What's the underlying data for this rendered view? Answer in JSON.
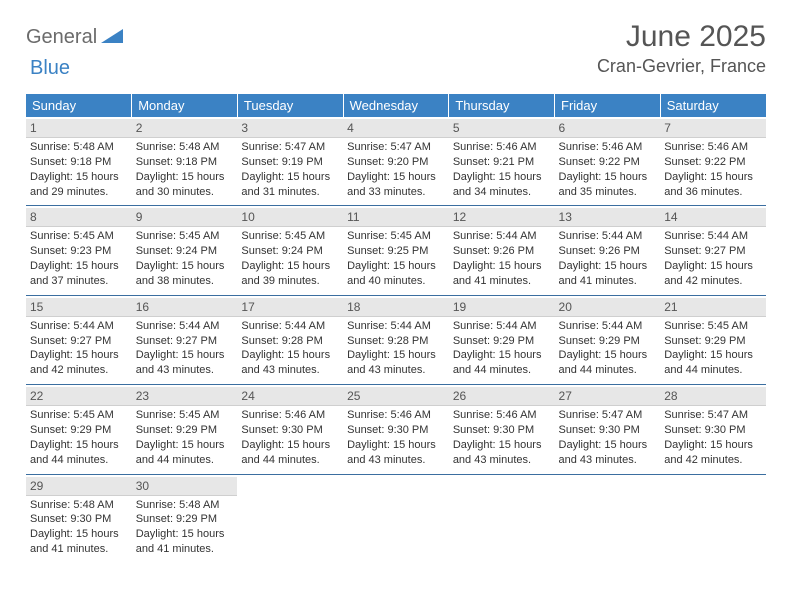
{
  "logo": {
    "part1": "General",
    "part2": "Blue"
  },
  "title": {
    "month": "June 2025",
    "location": "Cran-Gevrier, France"
  },
  "colors": {
    "header_bg": "#3b82c4",
    "header_text": "#ffffff",
    "daynum_bg": "#e7e7e7",
    "row_border": "#3b6ea0",
    "logo_gray": "#6b6b6b",
    "logo_blue": "#3b82c4"
  },
  "weekdays": [
    "Sunday",
    "Monday",
    "Tuesday",
    "Wednesday",
    "Thursday",
    "Friday",
    "Saturday"
  ],
  "weeks": [
    [
      {
        "n": "1",
        "sr": "5:48 AM",
        "ss": "9:18 PM",
        "dl": "15 hours and 29 minutes."
      },
      {
        "n": "2",
        "sr": "5:48 AM",
        "ss": "9:18 PM",
        "dl": "15 hours and 30 minutes."
      },
      {
        "n": "3",
        "sr": "5:47 AM",
        "ss": "9:19 PM",
        "dl": "15 hours and 31 minutes."
      },
      {
        "n": "4",
        "sr": "5:47 AM",
        "ss": "9:20 PM",
        "dl": "15 hours and 33 minutes."
      },
      {
        "n": "5",
        "sr": "5:46 AM",
        "ss": "9:21 PM",
        "dl": "15 hours and 34 minutes."
      },
      {
        "n": "6",
        "sr": "5:46 AM",
        "ss": "9:22 PM",
        "dl": "15 hours and 35 minutes."
      },
      {
        "n": "7",
        "sr": "5:46 AM",
        "ss": "9:22 PM",
        "dl": "15 hours and 36 minutes."
      }
    ],
    [
      {
        "n": "8",
        "sr": "5:45 AM",
        "ss": "9:23 PM",
        "dl": "15 hours and 37 minutes."
      },
      {
        "n": "9",
        "sr": "5:45 AM",
        "ss": "9:24 PM",
        "dl": "15 hours and 38 minutes."
      },
      {
        "n": "10",
        "sr": "5:45 AM",
        "ss": "9:24 PM",
        "dl": "15 hours and 39 minutes."
      },
      {
        "n": "11",
        "sr": "5:45 AM",
        "ss": "9:25 PM",
        "dl": "15 hours and 40 minutes."
      },
      {
        "n": "12",
        "sr": "5:44 AM",
        "ss": "9:26 PM",
        "dl": "15 hours and 41 minutes."
      },
      {
        "n": "13",
        "sr": "5:44 AM",
        "ss": "9:26 PM",
        "dl": "15 hours and 41 minutes."
      },
      {
        "n": "14",
        "sr": "5:44 AM",
        "ss": "9:27 PM",
        "dl": "15 hours and 42 minutes."
      }
    ],
    [
      {
        "n": "15",
        "sr": "5:44 AM",
        "ss": "9:27 PM",
        "dl": "15 hours and 42 minutes."
      },
      {
        "n": "16",
        "sr": "5:44 AM",
        "ss": "9:27 PM",
        "dl": "15 hours and 43 minutes."
      },
      {
        "n": "17",
        "sr": "5:44 AM",
        "ss": "9:28 PM",
        "dl": "15 hours and 43 minutes."
      },
      {
        "n": "18",
        "sr": "5:44 AM",
        "ss": "9:28 PM",
        "dl": "15 hours and 43 minutes."
      },
      {
        "n": "19",
        "sr": "5:44 AM",
        "ss": "9:29 PM",
        "dl": "15 hours and 44 minutes."
      },
      {
        "n": "20",
        "sr": "5:44 AM",
        "ss": "9:29 PM",
        "dl": "15 hours and 44 minutes."
      },
      {
        "n": "21",
        "sr": "5:45 AM",
        "ss": "9:29 PM",
        "dl": "15 hours and 44 minutes."
      }
    ],
    [
      {
        "n": "22",
        "sr": "5:45 AM",
        "ss": "9:29 PM",
        "dl": "15 hours and 44 minutes."
      },
      {
        "n": "23",
        "sr": "5:45 AM",
        "ss": "9:29 PM",
        "dl": "15 hours and 44 minutes."
      },
      {
        "n": "24",
        "sr": "5:46 AM",
        "ss": "9:30 PM",
        "dl": "15 hours and 44 minutes."
      },
      {
        "n": "25",
        "sr": "5:46 AM",
        "ss": "9:30 PM",
        "dl": "15 hours and 43 minutes."
      },
      {
        "n": "26",
        "sr": "5:46 AM",
        "ss": "9:30 PM",
        "dl": "15 hours and 43 minutes."
      },
      {
        "n": "27",
        "sr": "5:47 AM",
        "ss": "9:30 PM",
        "dl": "15 hours and 43 minutes."
      },
      {
        "n": "28",
        "sr": "5:47 AM",
        "ss": "9:30 PM",
        "dl": "15 hours and 42 minutes."
      }
    ],
    [
      {
        "n": "29",
        "sr": "5:48 AM",
        "ss": "9:30 PM",
        "dl": "15 hours and 41 minutes."
      },
      {
        "n": "30",
        "sr": "5:48 AM",
        "ss": "9:29 PM",
        "dl": "15 hours and 41 minutes."
      },
      null,
      null,
      null,
      null,
      null
    ]
  ],
  "labels": {
    "sunrise": "Sunrise:",
    "sunset": "Sunset:",
    "daylight": "Daylight:"
  }
}
